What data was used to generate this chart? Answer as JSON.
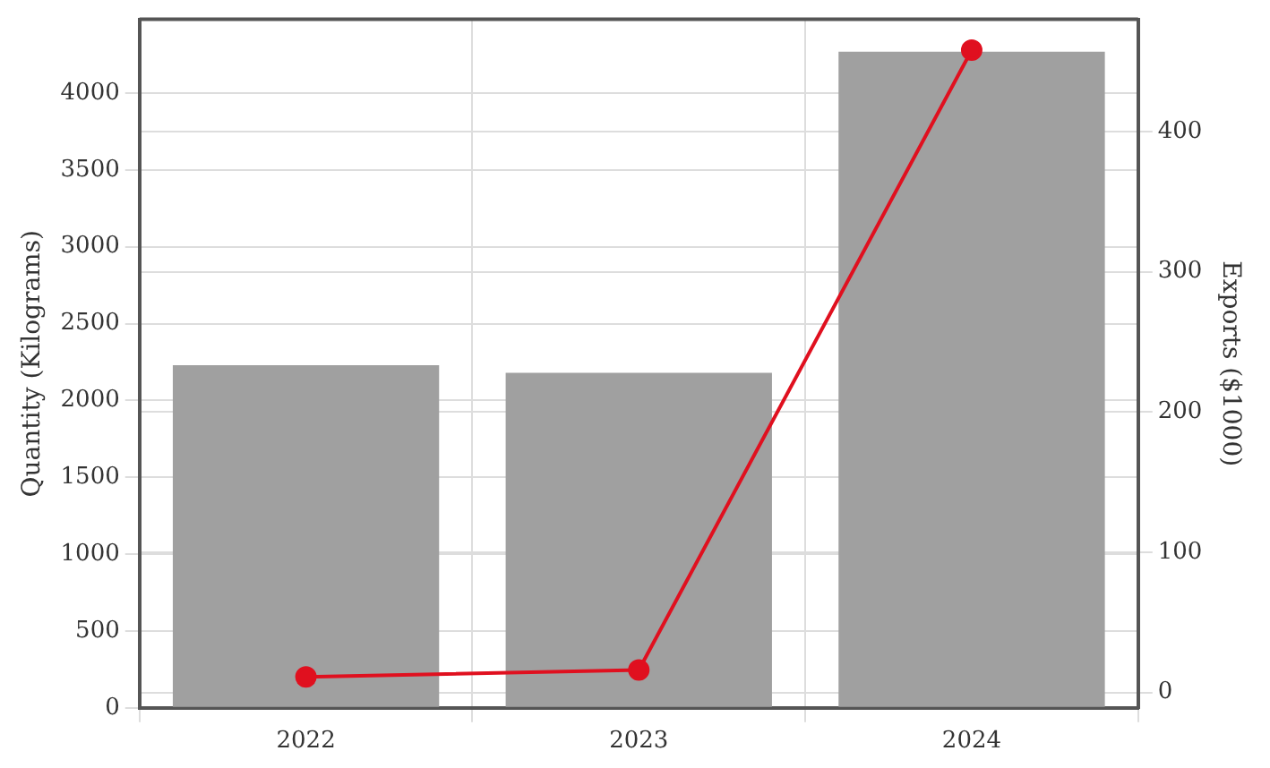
{
  "chart_data": {
    "type": "bar",
    "categories": [
      "2022",
      "2023",
      "2024"
    ],
    "ylabel": "Quantity (Kilograms)",
    "y2label": "Exports ($1000)",
    "series": [
      {
        "color": "#a0a0a0",
        "values": [
          2230,
          2180,
          4270
        ]
      },
      {
        "type": "line",
        "axis": "y2",
        "color": "#e0101f",
        "values": [
          11,
          16,
          458
        ]
      }
    ],
    "ylim": [
      0,
      4480
    ],
    "yticks": [
      0,
      500,
      1000,
      1500,
      2000,
      2500,
      3000,
      3500,
      4000
    ],
    "y2lim": [
      -11,
      480
    ],
    "y2ticks": [
      0,
      100,
      200,
      300,
      400
    ],
    "grid": true,
    "marker": "circle",
    "legend": false
  }
}
